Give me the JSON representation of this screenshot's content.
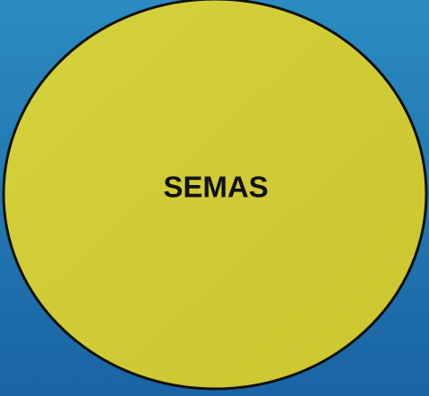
{
  "nodes": [
    {
      "label": "SEMAS"
    }
  ]
}
